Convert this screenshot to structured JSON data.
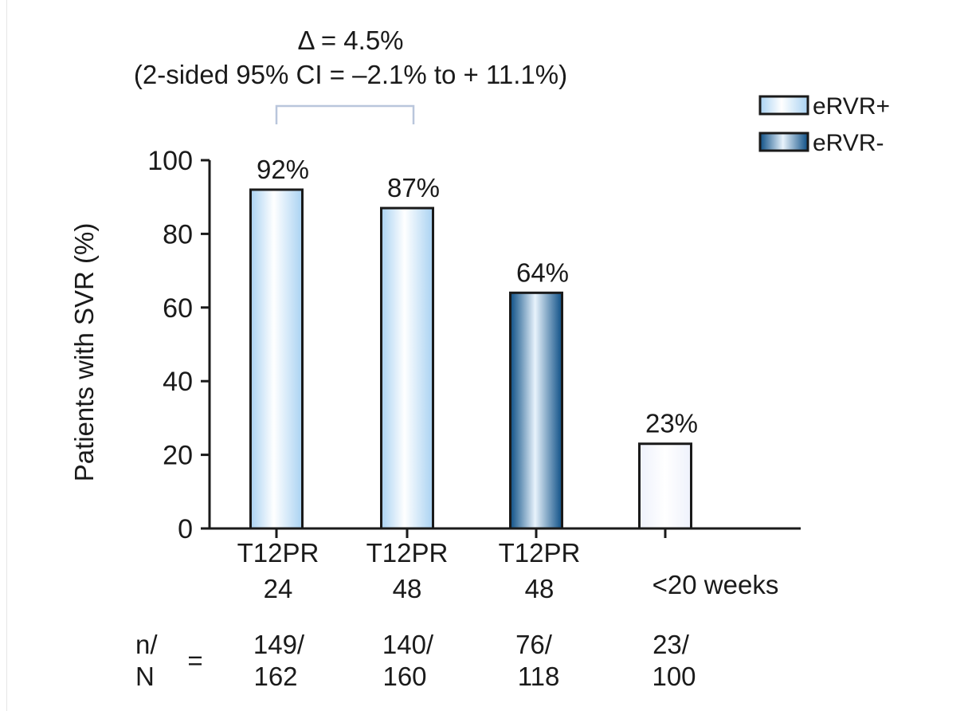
{
  "chart_data": {
    "type": "bar",
    "ylabel": "Patients with SVR (%)",
    "ylim": [
      0,
      100
    ],
    "yticks": [
      "0",
      "20",
      "40",
      "60",
      "80",
      "100"
    ],
    "annotation": {
      "line1": "Δ = 4.5%",
      "line2": "(2-sided 95% CI = –2.1% to + 11.1%)"
    },
    "legend": {
      "placement": "top-right",
      "items": [
        {
          "label": "eRVR+",
          "color": "#b9ddf6"
        },
        {
          "label": "eRVR-",
          "color": "#1b5e93"
        }
      ]
    },
    "categories": [
      {
        "line1": "T12PR",
        "line2": "24"
      },
      {
        "line1": "T12PR",
        "line2": "48"
      },
      {
        "line1": "T12PR",
        "line2": "48"
      },
      {
        "line1": "",
        "line2": "<20 weeks"
      }
    ],
    "values": [
      92,
      87,
      64,
      23
    ],
    "value_labels": [
      "92%",
      "87%",
      "64%",
      "23%"
    ],
    "bar_groups": [
      "eRVR+",
      "eRVR+",
      "eRVR-",
      "none"
    ],
    "n_label": {
      "line1": "n/",
      "line2": "N",
      "eq": "="
    },
    "n_values": [
      {
        "n": "149/",
        "N": "162"
      },
      {
        "n": "140/",
        "N": "160"
      },
      {
        "n": "76/",
        "N": "118"
      },
      {
        "n": "23/",
        "N": "100"
      }
    ]
  }
}
